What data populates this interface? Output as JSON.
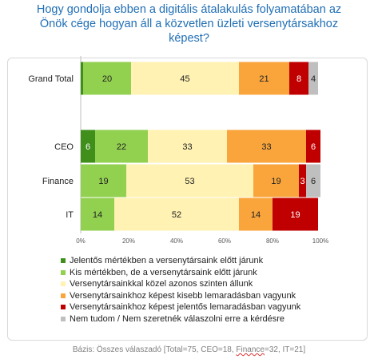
{
  "title_lines": [
    "Hogy gondolja ebben a digitális átalakulás folyamatában az",
    "Önök cége hogyan áll a közvetlen üzleti versenytársakhoz",
    "képest?"
  ],
  "footnote": {
    "prefix": "Bázis: Összes válaszadó [Total=75, CEO=18, ",
    "finance": "Finance",
    "suffix": "=32, IT=21]"
  },
  "chart_data": {
    "type": "bar",
    "orientation": "horizontal",
    "stacked": true,
    "percent": true,
    "categories": [
      "Grand Total",
      "CEO",
      "Finance",
      "IT"
    ],
    "series": [
      {
        "name": "Jelentős mértékben a versenytársaink előtt járunk",
        "color": "#3F8F1A",
        "values": [
          1,
          6,
          0,
          0
        ],
        "labels": [
          "",
          "6",
          "",
          ""
        ]
      },
      {
        "name": "Kis mértékben, de a versenytársaink előtt járunk",
        "color": "#92D050",
        "values": [
          20,
          22,
          19,
          14
        ],
        "labels": [
          "20",
          "22",
          "19",
          "14"
        ]
      },
      {
        "name": "Versenytársainkkal közel azonos szinten állunk",
        "color": "#FFF2B3",
        "values": [
          45,
          33,
          53,
          52
        ],
        "labels": [
          "45",
          "33",
          "53",
          "52"
        ]
      },
      {
        "name": "Versenytársainkhoz képest kisebb lemaradásban vagyunk",
        "color": "#F9A53C",
        "values": [
          21,
          33,
          19,
          14
        ],
        "labels": [
          "21",
          "33",
          "19",
          "14"
        ]
      },
      {
        "name": "Versenytársainkhoz képest jelentős lemaradásban vagyunk",
        "color": "#C00000",
        "values": [
          8,
          6,
          3,
          19
        ],
        "labels": [
          "8",
          "6",
          "3",
          "19"
        ]
      },
      {
        "name": "Nem tudom / Nem szeretnék válaszolni erre a kérdésre",
        "color": "#BFBFBF",
        "values": [
          4,
          0,
          6,
          0
        ],
        "labels": [
          "4",
          "",
          "6",
          ""
        ]
      }
    ],
    "xticks": [
      "0%",
      "20%",
      "40%",
      "60%",
      "80%",
      "100%"
    ],
    "xlim": [
      0,
      100
    ],
    "legend_position": "bottom"
  }
}
